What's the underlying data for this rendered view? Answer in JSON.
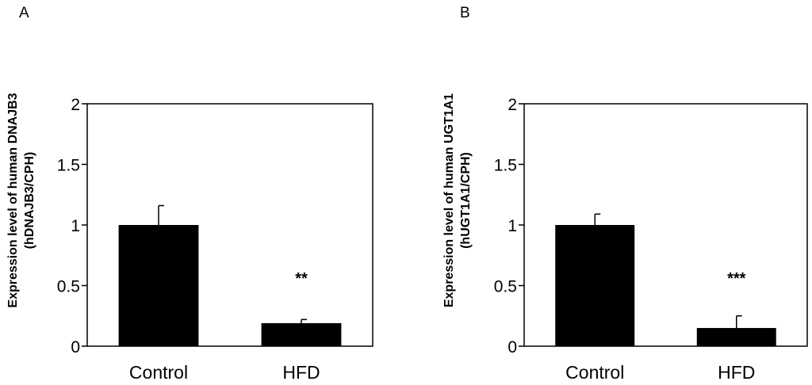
{
  "chart_data": [
    {
      "type": "bar",
      "panel": "A",
      "ylabel_line1": "Expression  level  of  human DNAJB3",
      "ylabel_line2": "(hDNAJB3/CPH)",
      "categories": [
        "Control",
        "HFD"
      ],
      "values": [
        1.0,
        0.19
      ],
      "errors": [
        0.16,
        0.03
      ],
      "significance": [
        "",
        "**"
      ],
      "ylim": [
        0,
        2
      ],
      "yticks": [
        "0",
        "0.5",
        "1",
        "1.5",
        "2"
      ],
      "bar_color": "#000000",
      "grid": false
    },
    {
      "type": "bar",
      "panel": "B",
      "ylabel_line1": "Expression  level  of  human UGT1A1",
      "ylabel_line2": "(hUGT1A1/CPH)",
      "categories": [
        "Control",
        "HFD"
      ],
      "values": [
        1.0,
        0.15
      ],
      "errors": [
        0.09,
        0.1
      ],
      "significance": [
        "",
        "***"
      ],
      "ylim": [
        0,
        2
      ],
      "yticks": [
        "0",
        "0.5",
        "1",
        "1.5",
        "2"
      ],
      "bar_color": "#000000",
      "grid": false
    }
  ]
}
